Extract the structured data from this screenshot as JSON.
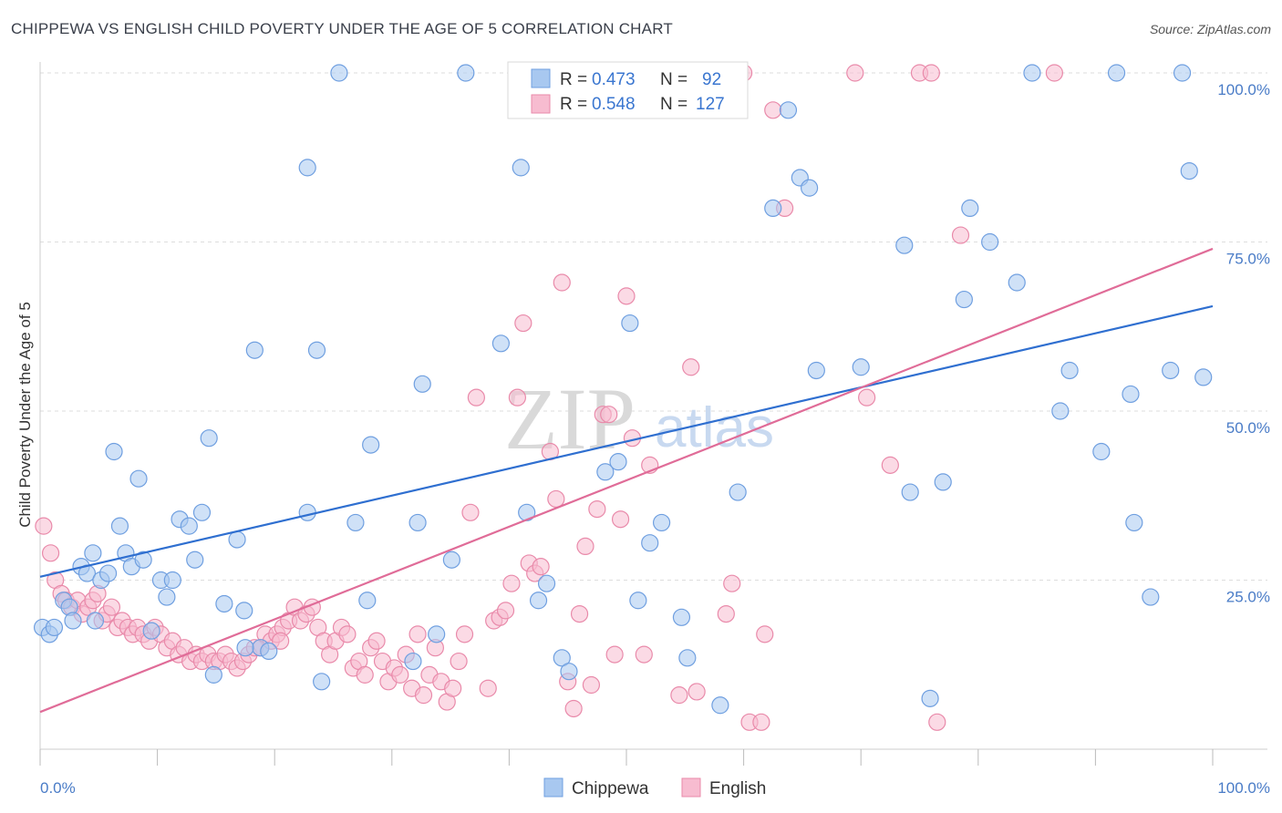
{
  "title": "CHIPPEWA VS ENGLISH CHILD POVERTY UNDER THE AGE OF 5 CORRELATION CHART",
  "source": "Source: ZipAtlas.com",
  "watermark": {
    "zip": "ZIP",
    "atlas": "atlas"
  },
  "legend_top": [
    {
      "r_label": "R =",
      "r_value": "0.473",
      "n_label": "N =",
      "n_value": "92"
    },
    {
      "r_label": "R =",
      "r_value": "0.548",
      "n_label": "N =",
      "n_value": "127"
    }
  ],
  "colors": {
    "blue_fill": "#a8c8f0",
    "blue_stroke": "#6f9fe0",
    "blue_line": "#2f6fd0",
    "pink_fill": "#f7bcd0",
    "pink_stroke": "#e98aaa",
    "pink_line": "#e06c98",
    "grid": "#dddddd",
    "axis_text": "#4a7cc7"
  },
  "chart_data": {
    "type": "scatter",
    "title": "CHIPPEWA VS ENGLISH CHILD POVERTY UNDER THE AGE OF 5 CORRELATION CHART",
    "xlabel": "",
    "ylabel": "Child Poverty Under the Age of 5",
    "xlim": [
      0,
      100
    ],
    "ylim": [
      0,
      100
    ],
    "x_tick_labels": [
      "0.0%",
      "100.0%"
    ],
    "y_tick_labels": [
      "25.0%",
      "50.0%",
      "75.0%",
      "100.0%"
    ],
    "grid": true,
    "legend_position": "top-center",
    "series": [
      {
        "name": "Chippewa",
        "r": 0.473,
        "n": 92,
        "trend": [
          [
            0,
            25.5
          ],
          [
            100,
            65.5
          ]
        ],
        "points": [
          [
            0.2,
            18
          ],
          [
            0.8,
            17
          ],
          [
            1.2,
            18
          ],
          [
            2,
            22
          ],
          [
            2.5,
            21
          ],
          [
            2.8,
            19
          ],
          [
            3.5,
            27
          ],
          [
            4,
            26
          ],
          [
            4.5,
            29
          ],
          [
            4.7,
            19
          ],
          [
            5.2,
            25
          ],
          [
            5.8,
            26
          ],
          [
            6.3,
            44
          ],
          [
            6.8,
            33
          ],
          [
            7.3,
            29
          ],
          [
            7.8,
            27
          ],
          [
            8.4,
            40
          ],
          [
            8.8,
            28
          ],
          [
            9.5,
            17.5
          ],
          [
            10.3,
            25
          ],
          [
            10.8,
            22.5
          ],
          [
            11.3,
            25
          ],
          [
            11.9,
            34
          ],
          [
            12.7,
            33
          ],
          [
            13.2,
            28
          ],
          [
            13.8,
            35
          ],
          [
            14.4,
            46
          ],
          [
            14.8,
            11
          ],
          [
            15.7,
            21.5
          ],
          [
            16.8,
            31
          ],
          [
            17.4,
            20.5
          ],
          [
            18.3,
            59
          ],
          [
            18.8,
            15
          ],
          [
            19.5,
            14.5
          ],
          [
            22.8,
            86
          ],
          [
            22.8,
            35
          ],
          [
            23.6,
            59
          ],
          [
            24,
            10
          ],
          [
            25.5,
            100
          ],
          [
            26.9,
            33.5
          ],
          [
            27.9,
            22
          ],
          [
            28.2,
            45
          ],
          [
            31.8,
            13
          ],
          [
            32.2,
            33.5
          ],
          [
            32.6,
            54
          ],
          [
            33.8,
            17
          ],
          [
            35.1,
            28
          ],
          [
            36.3,
            100
          ],
          [
            39.3,
            60
          ],
          [
            41,
            86
          ],
          [
            41.5,
            35
          ],
          [
            42.5,
            22
          ],
          [
            43.2,
            24.5
          ],
          [
            44.5,
            13.5
          ],
          [
            45.1,
            11.5
          ],
          [
            48.2,
            41
          ],
          [
            49.3,
            42.5
          ],
          [
            50.3,
            63
          ],
          [
            51,
            22
          ],
          [
            52,
            30.5
          ],
          [
            53,
            33.5
          ],
          [
            54.7,
            19.5
          ],
          [
            55.2,
            13.5
          ],
          [
            58,
            6.5
          ],
          [
            59.5,
            38
          ],
          [
            62.5,
            80
          ],
          [
            63.8,
            94.5
          ],
          [
            64.8,
            84.5
          ],
          [
            65.6,
            83
          ],
          [
            66.2,
            56
          ],
          [
            70,
            56.5
          ],
          [
            73.7,
            74.5
          ],
          [
            74.2,
            38
          ],
          [
            75.9,
            7.5
          ],
          [
            77,
            39.5
          ],
          [
            78.8,
            66.5
          ],
          [
            79.3,
            80
          ],
          [
            81,
            75
          ],
          [
            83.3,
            69
          ],
          [
            84.6,
            100
          ],
          [
            87,
            50
          ],
          [
            87.8,
            56
          ],
          [
            90.5,
            44
          ],
          [
            91.8,
            100
          ],
          [
            93,
            52.5
          ],
          [
            93.3,
            33.5
          ],
          [
            94.7,
            22.5
          ],
          [
            96.4,
            56
          ],
          [
            97.4,
            100
          ],
          [
            98,
            85.5
          ],
          [
            99.2,
            55
          ],
          [
            17.5,
            15
          ]
        ]
      },
      {
        "name": "English",
        "r": 0.548,
        "n": 127,
        "trend": [
          [
            0,
            5.5
          ],
          [
            100,
            74
          ]
        ],
        "points": [
          [
            0.3,
            33
          ],
          [
            0.9,
            29
          ],
          [
            1.3,
            25
          ],
          [
            1.8,
            23
          ],
          [
            2.2,
            22
          ],
          [
            2.7,
            21
          ],
          [
            3.2,
            22
          ],
          [
            3.6,
            20
          ],
          [
            4.1,
            21
          ],
          [
            4.5,
            22
          ],
          [
            4.9,
            23
          ],
          [
            5.3,
            19
          ],
          [
            5.7,
            20
          ],
          [
            6.1,
            21
          ],
          [
            6.6,
            18
          ],
          [
            7.0,
            19
          ],
          [
            7.5,
            18
          ],
          [
            7.9,
            17
          ],
          [
            8.3,
            18
          ],
          [
            8.8,
            17
          ],
          [
            9.3,
            16
          ],
          [
            9.8,
            18
          ],
          [
            10.3,
            17
          ],
          [
            10.8,
            15
          ],
          [
            11.3,
            16
          ],
          [
            11.8,
            14
          ],
          [
            12.3,
            15
          ],
          [
            12.8,
            13
          ],
          [
            13.3,
            14
          ],
          [
            13.8,
            13
          ],
          [
            14.3,
            14
          ],
          [
            14.8,
            13
          ],
          [
            15.3,
            13
          ],
          [
            15.8,
            14
          ],
          [
            16.3,
            13
          ],
          [
            16.8,
            12
          ],
          [
            17.3,
            13
          ],
          [
            17.8,
            14
          ],
          [
            18.3,
            15
          ],
          [
            18.8,
            15
          ],
          [
            19.2,
            17
          ],
          [
            19.7,
            16
          ],
          [
            20.2,
            17
          ],
          [
            20.7,
            18
          ],
          [
            21.2,
            19
          ],
          [
            21.7,
            21
          ],
          [
            22.2,
            19
          ],
          [
            22.7,
            20
          ],
          [
            23.2,
            21
          ],
          [
            23.7,
            18
          ],
          [
            24.2,
            16
          ],
          [
            24.7,
            14
          ],
          [
            25.2,
            16
          ],
          [
            25.7,
            18
          ],
          [
            26.2,
            17
          ],
          [
            26.7,
            12
          ],
          [
            27.2,
            13
          ],
          [
            27.7,
            11
          ],
          [
            28.2,
            15
          ],
          [
            28.7,
            16
          ],
          [
            29.2,
            13
          ],
          [
            29.7,
            10
          ],
          [
            30.2,
            12
          ],
          [
            30.7,
            11
          ],
          [
            31.2,
            14
          ],
          [
            31.7,
            9
          ],
          [
            32.2,
            17
          ],
          [
            32.7,
            8
          ],
          [
            33.2,
            11
          ],
          [
            33.7,
            15
          ],
          [
            34.2,
            10
          ],
          [
            34.7,
            7
          ],
          [
            35.2,
            9
          ],
          [
            35.7,
            13
          ],
          [
            36.2,
            17
          ],
          [
            36.7,
            35
          ],
          [
            37.2,
            52
          ],
          [
            38.2,
            9
          ],
          [
            38.7,
            19
          ],
          [
            39.2,
            19.5
          ],
          [
            39.7,
            20.5
          ],
          [
            40.2,
            24.5
          ],
          [
            40.7,
            52
          ],
          [
            41.2,
            63
          ],
          [
            41.7,
            27.5
          ],
          [
            42.2,
            26
          ],
          [
            42.7,
            27
          ],
          [
            43.5,
            44
          ],
          [
            44.0,
            37
          ],
          [
            44.5,
            69
          ],
          [
            45.0,
            10
          ],
          [
            45.5,
            6
          ],
          [
            46.0,
            20
          ],
          [
            46.5,
            30
          ],
          [
            47.0,
            9.5
          ],
          [
            47.5,
            35.5
          ],
          [
            48.0,
            49.5
          ],
          [
            48.5,
            49.5
          ],
          [
            49.0,
            14
          ],
          [
            49.5,
            34
          ],
          [
            50.0,
            67
          ],
          [
            50.5,
            46
          ],
          [
            51.5,
            14
          ],
          [
            52.0,
            42
          ],
          [
            54.5,
            8
          ],
          [
            55.0,
            100
          ],
          [
            55.5,
            56.5
          ],
          [
            56.0,
            8.5
          ],
          [
            58.5,
            20
          ],
          [
            59.0,
            24.5
          ],
          [
            60.5,
            4
          ],
          [
            61.5,
            4
          ],
          [
            61.8,
            17
          ],
          [
            62.5,
            94.5
          ],
          [
            63.5,
            80
          ],
          [
            69.5,
            100
          ],
          [
            70.5,
            52
          ],
          [
            72.5,
            42
          ],
          [
            75.0,
            100
          ],
          [
            76.0,
            100
          ],
          [
            76.5,
            4
          ],
          [
            78.5,
            76
          ],
          [
            86.5,
            100
          ],
          [
            57.5,
            100
          ],
          [
            60.0,
            100
          ],
          [
            54.8,
            100
          ],
          [
            20.5,
            16
          ]
        ]
      }
    ]
  }
}
